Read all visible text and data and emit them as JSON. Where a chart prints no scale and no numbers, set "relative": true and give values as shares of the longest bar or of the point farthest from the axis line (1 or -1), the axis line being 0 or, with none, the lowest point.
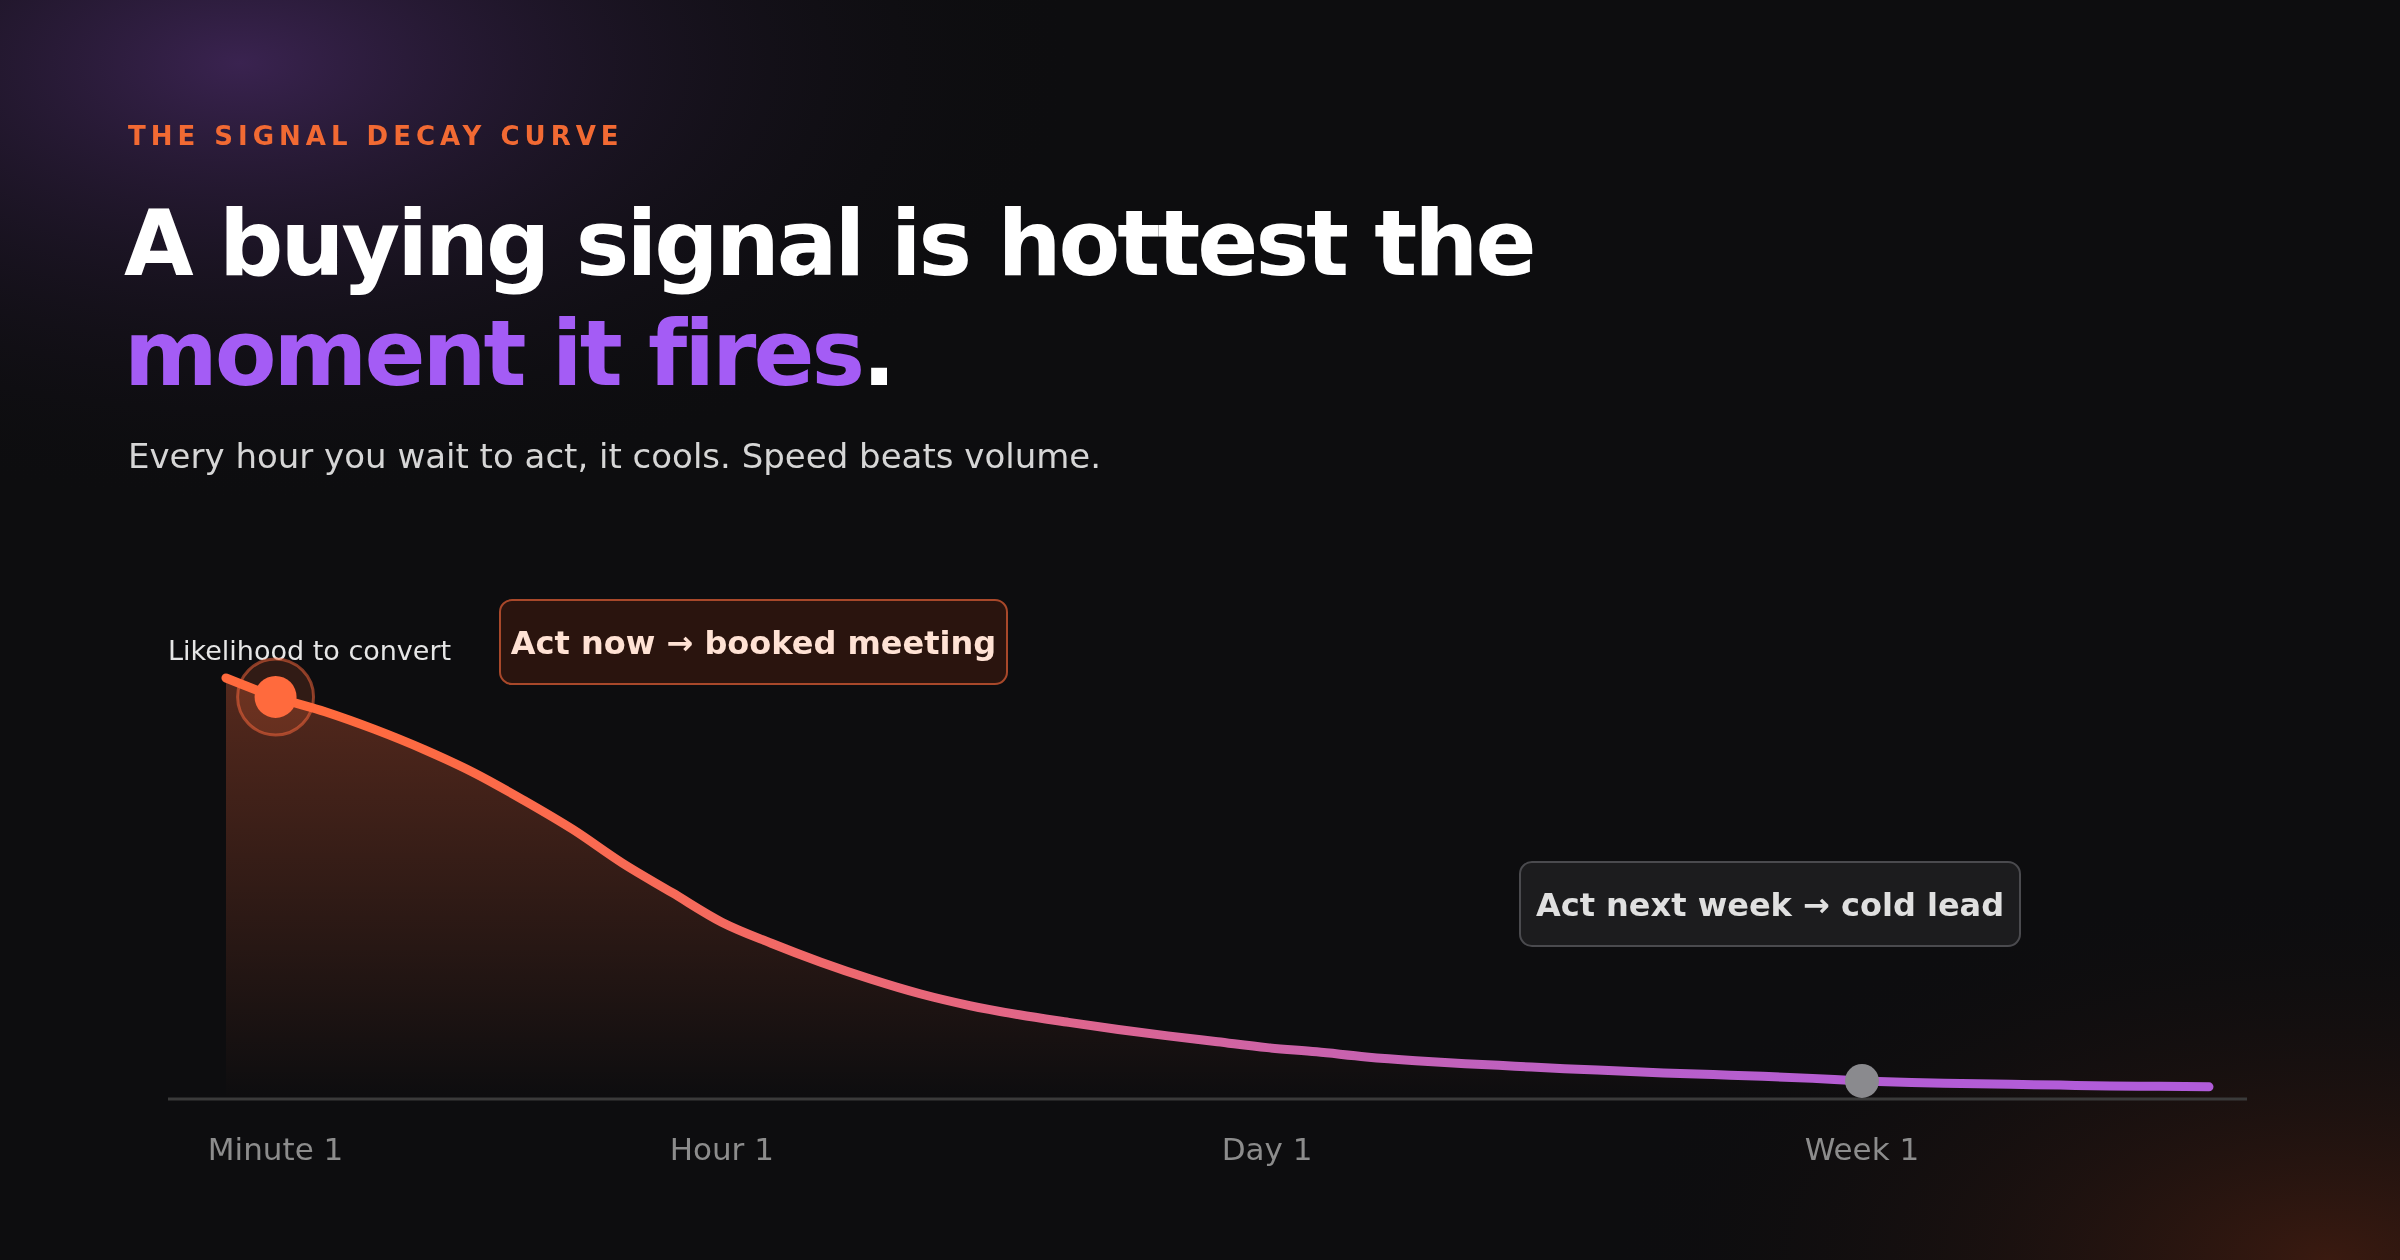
{
  "chart_data": {
    "type": "area",
    "relative": true,
    "title": "A buying signal is hottest the moment it fires.",
    "subtitle": "Every hour you wait to act, it cools. Speed beats volume.",
    "ylabel": "Likelihood to convert",
    "categories": [
      null,
      "Minute 1",
      null,
      null,
      null,
      null,
      null,
      null,
      null,
      null,
      "Hour 1",
      null,
      null,
      null,
      null,
      null,
      null,
      null,
      null,
      null,
      null,
      "Day 1",
      null,
      null,
      null,
      null,
      null,
      null,
      null,
      null,
      null,
      null,
      null,
      "Week 1",
      null,
      null,
      null,
      null,
      null,
      null,
      null
    ],
    "annotations": [
      "THE SIGNAL DECAY CURVE",
      "Act now → booked meeting",
      "Act next week → cold lead"
    ],
    "series": [
      {
        "color": "#ff6a3d",
        "values": [
          1.0,
          0.955,
          0.92,
          0.878,
          0.83,
          0.775,
          0.71,
          0.64,
          0.56,
          0.49,
          0.42,
          0.37,
          0.325,
          0.285,
          0.25,
          0.222,
          0.2,
          0.182,
          0.165,
          0.15,
          0.136,
          0.122,
          0.112,
          0.1,
          0.091,
          0.084,
          0.078,
          0.072,
          0.067,
          0.062,
          0.058,
          0.054,
          0.049,
          0.043,
          0.039,
          0.037,
          0.035,
          0.033,
          0.031,
          0.03,
          0.029
        ],
        "colors": [
          "#ff6a3d",
          "#ff6a3d",
          "#ff6a3d",
          "#fe6a40",
          "#fd6a43",
          "#fc6a47",
          "#fb6a4b",
          "#fa6a4f",
          "#f86a54",
          "#f66a59",
          "#f4695f",
          "#f26965",
          "#ef686b",
          "#ec6872",
          "#e96779",
          "#e66780",
          "#e26687",
          "#de668d",
          "#da6593",
          "#d66499",
          "#d264a0",
          "#ce63a5",
          "#ca62ab",
          "#c762b1",
          "#c461b6",
          "#c161bb",
          "#be60bf",
          "#bc60c3",
          "#ba5fc7",
          "#b85fca",
          "#b75ecd",
          "#b65ecf",
          "#b55dd1",
          "#b45dd3",
          "#b35dd4",
          "#b35cd6",
          "#b25cd7",
          "#b25cd8",
          "#b15cd9",
          "#b15cda",
          "#b15cda"
        ]
      },
      {
        "type": "scatter",
        "x": [
          "Minute 1",
          "Week 1"
        ],
        "values": [
          0.955,
          0.043
        ],
        "colors": [
          "#ff6a3d",
          "#8a8a8e"
        ]
      }
    ]
  }
}
